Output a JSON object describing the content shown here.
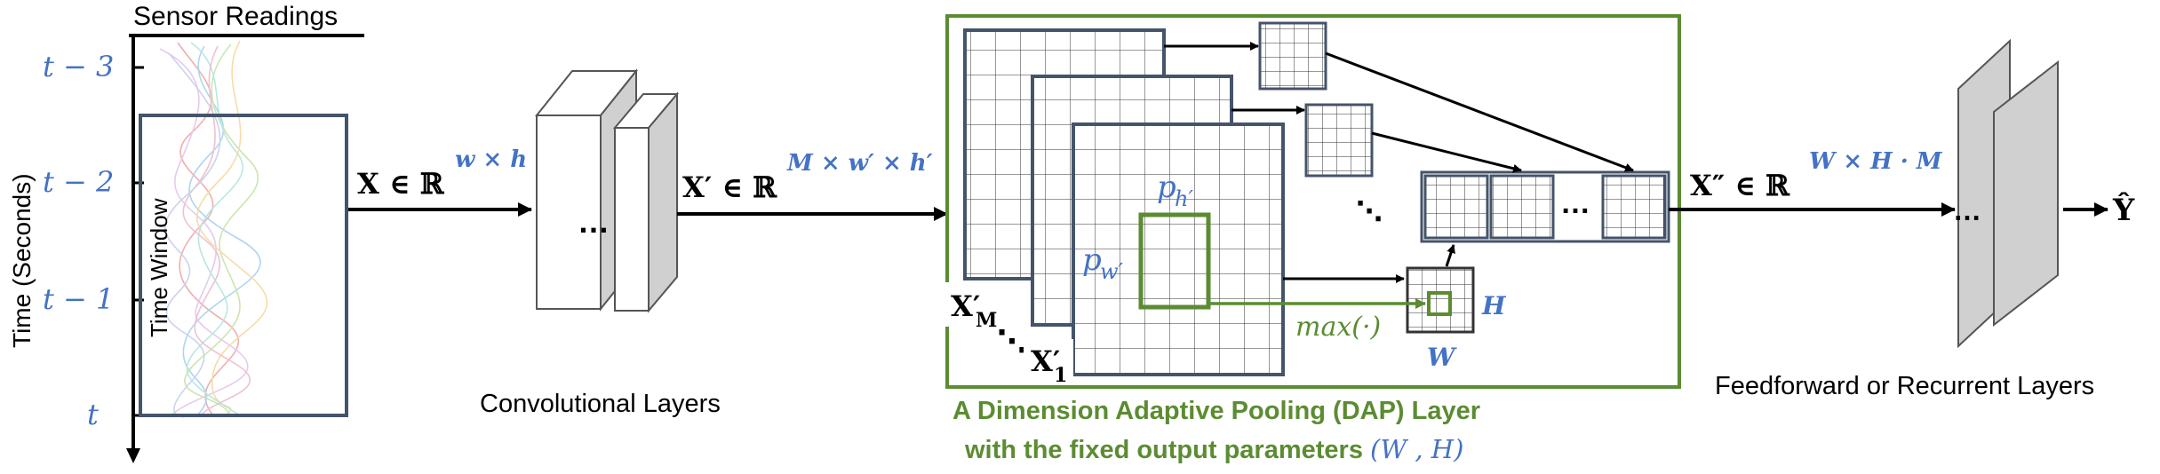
{
  "sensor": {
    "title": "Sensor Readings",
    "axis_label": "Time (Seconds)",
    "ticks": [
      "t − 3",
      "t − 2",
      "t − 1",
      "t"
    ],
    "window_label": "Time Window"
  },
  "x_input": {
    "main": "X ∈ ℝ",
    "sup": "w × h"
  },
  "conv": {
    "label": "Convolutional Layers",
    "dots": "…"
  },
  "x_prime": {
    "main": "X′ ∈ ℝ",
    "sup": "M × w′ × h′"
  },
  "dap": {
    "title_line1": "A Dimension Adaptive Pooling (DAP) Layer",
    "title_line2_prefix": "with the fixed output parameters ",
    "title_line2_params": "(W , H)",
    "xm": "X′",
    "xm_sub": "M",
    "x1": "X′",
    "x1_sub": "1",
    "ph": "p",
    "ph_sub": "h′",
    "pw": "p",
    "pw_sub": "w′",
    "max_label": "max(·)",
    "W": "W",
    "H": "H",
    "dots_vertical": "⋱",
    "dots_mid": "⋱",
    "dots_row": "…"
  },
  "x_double": {
    "main": "X″ ∈ ℝ",
    "sup": "W × H · M"
  },
  "ff": {
    "label": "Feedforward or Recurrent Layers",
    "dots": "…"
  },
  "output": {
    "label": "Ŷ"
  },
  "colors": {
    "blue": "#4472C4",
    "green": "#5B8C32",
    "navy": "#44546A",
    "grey": "#D0D0D0"
  }
}
